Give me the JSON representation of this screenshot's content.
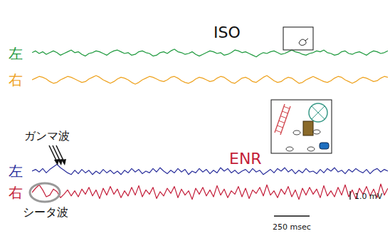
{
  "chart_data": [
    {
      "type": "line",
      "title": "ISO",
      "tick_labels": false,
      "x": [
        0,
        25,
        50,
        75,
        100,
        125,
        150,
        175,
        200,
        225,
        250,
        275,
        300,
        325,
        350,
        375,
        400,
        425,
        450,
        475,
        500,
        525,
        550,
        575,
        600,
        625,
        650,
        675,
        700,
        725,
        750,
        775,
        800,
        825,
        850,
        875,
        900,
        925,
        950,
        975,
        1000,
        1025,
        1050,
        1075,
        1100,
        1125,
        1150,
        1175,
        1200,
        1225,
        1250,
        1275,
        1300,
        1325,
        1350,
        1375,
        1400,
        1425,
        1450,
        1475,
        1500,
        1525,
        1550,
        1575,
        1600,
        1625,
        1650,
        1675,
        1700,
        1725,
        1750,
        1775,
        1800,
        1825,
        1850,
        1875,
        1900,
        1925,
        1950,
        1975,
        2000,
        2025,
        2050,
        2075,
        2100,
        2125,
        2150,
        2175,
        2200,
        2225,
        2250,
        2275,
        2300,
        2325,
        2350,
        2375,
        2400,
        2425,
        2450,
        2475,
        2500
      ],
      "xlim": [
        0,
        2500
      ],
      "ylim": [
        -1.2,
        1.2
      ],
      "series": [
        {
          "name": "左",
          "color": "#1f9a3e",
          "values": [
            0.1,
            0.3,
            0.0,
            0.2,
            -0.1,
            0.1,
            0.3,
            0.1,
            -0.2,
            0.0,
            0.2,
            0.4,
            0.1,
            0.2,
            -0.1,
            -0.3,
            0.0,
            0.1,
            0.3,
            0.2,
            0.0,
            -0.2,
            0.1,
            0.3,
            0.4,
            0.2,
            0.0,
            0.1,
            -0.2,
            -0.1,
            0.2,
            0.3,
            0.1,
            0.0,
            -0.3,
            -0.2,
            0.1,
            0.2,
            0.0,
            0.3,
            0.5,
            0.2,
            0.1,
            -0.1,
            0.0,
            0.2,
            -0.1,
            -0.3,
            -0.1,
            0.1,
            0.3,
            0.2,
            0.0,
            0.1,
            -0.2,
            -0.1,
            0.1,
            0.4,
            0.3,
            0.1,
            0.2,
            0.0,
            -0.2,
            -0.4,
            -0.1,
            0.1,
            0.0,
            0.2,
            0.3,
            0.1,
            -0.1,
            0.0,
            0.2,
            0.4,
            0.2,
            0.1,
            -0.1,
            -0.2,
            0.0,
            0.1,
            0.3,
            0.2,
            0.4,
            0.1,
            0.0,
            -0.2,
            -0.1,
            0.2,
            0.3,
            0.0,
            -0.1,
            0.1,
            0.2,
            0.0,
            -0.2,
            0.1,
            0.3,
            0.2,
            0.0,
            0.1,
            0.3
          ]
        },
        {
          "name": "右",
          "color": "#eea21e",
          "values": [
            0.0,
            0.2,
            0.4,
            0.3,
            0.1,
            -0.2,
            -0.4,
            -0.3,
            0.0,
            0.2,
            0.4,
            0.3,
            0.1,
            -0.1,
            -0.3,
            -0.2,
            0.1,
            0.3,
            0.5,
            0.3,
            0.0,
            -0.2,
            -0.4,
            -0.2,
            0.1,
            0.3,
            0.2,
            0.0,
            -0.3,
            -0.5,
            -0.3,
            0.0,
            0.2,
            0.4,
            0.3,
            0.1,
            -0.1,
            -0.2,
            0.0,
            0.3,
            0.4,
            0.2,
            -0.1,
            -0.3,
            -0.4,
            -0.2,
            0.1,
            0.3,
            0.2,
            0.0,
            -0.2,
            -0.1,
            0.2,
            0.4,
            0.3,
            0.0,
            -0.3,
            -0.4,
            -0.1,
            0.2,
            0.3,
            0.1,
            -0.2,
            -0.3,
            0.0,
            0.3,
            0.5,
            0.2,
            -0.1,
            -0.3,
            -0.2,
            0.1,
            0.3,
            0.2,
            -0.1,
            -0.4,
            -0.3,
            0.0,
            0.2,
            0.4,
            0.2,
            0.0,
            -0.2,
            -0.3,
            -0.1,
            0.2,
            0.4,
            0.3,
            0.0,
            -0.2,
            -0.4,
            -0.2,
            0.1,
            0.3,
            0.2,
            0.0,
            -0.2,
            -0.1,
            0.2,
            0.4,
            0.3
          ]
        }
      ]
    },
    {
      "type": "line",
      "title": "ENR",
      "tick_labels": false,
      "x": [
        0,
        25,
        50,
        75,
        100,
        125,
        150,
        175,
        200,
        225,
        250,
        275,
        300,
        325,
        350,
        375,
        400,
        425,
        450,
        475,
        500,
        525,
        550,
        575,
        600,
        625,
        650,
        675,
        700,
        725,
        750,
        775,
        800,
        825,
        850,
        875,
        900,
        925,
        950,
        975,
        1000,
        1025,
        1050,
        1075,
        1100,
        1125,
        1150,
        1175,
        1200,
        1225,
        1250,
        1275,
        1300,
        1325,
        1350,
        1375,
        1400,
        1425,
        1450,
        1475,
        1500,
        1525,
        1550,
        1575,
        1600,
        1625,
        1650,
        1675,
        1700,
        1725,
        1750,
        1775,
        1800,
        1825,
        1850,
        1875,
        1900,
        1925,
        1950,
        1975,
        2000,
        2025,
        2050,
        2075,
        2100,
        2125,
        2150,
        2175,
        2200,
        2225,
        2250,
        2275,
        2300,
        2325,
        2350,
        2375,
        2400,
        2425,
        2450,
        2475,
        2500
      ],
      "xlim": [
        0,
        2500
      ],
      "ylim": [
        -1.2,
        1.2
      ],
      "annotations": [
        "ガンマ波",
        "シータ波"
      ],
      "scale_bar": {
        "x": 250,
        "x_label": "250 msec",
        "y": 1.0,
        "y_label": "1.0 mV"
      },
      "series": [
        {
          "name": "左",
          "color": "#2a2f9c",
          "values": [
            0.0,
            0.2,
            -0.1,
            0.3,
            -0.2,
            0.2,
            0.5,
            0.8,
            0.4,
            0.1,
            -0.2,
            -0.4,
            0.1,
            -0.3,
            0.2,
            -0.2,
            0.1,
            -0.4,
            0.0,
            -0.3,
            0.2,
            -0.2,
            0.1,
            -0.3,
            0.0,
            -0.4,
            0.1,
            -0.2,
            0.3,
            -0.1,
            0.2,
            -0.3,
            0.0,
            -0.2,
            0.3,
            -0.1,
            0.4,
            0.0,
            -0.3,
            0.1,
            -0.2,
            0.3,
            -0.1,
            0.2,
            -0.4,
            0.0,
            -0.2,
            0.3,
            -0.1,
            0.2,
            -0.3,
            0.1,
            -0.2,
            0.4,
            0.0,
            0.3,
            -0.2,
            0.1,
            -0.3,
            0.0,
            0.2,
            -0.2,
            0.3,
            -0.1,
            0.1,
            -0.4,
            -0.1,
            0.2,
            -0.2,
            0.3,
            0.0,
            0.4,
            -0.1,
            0.2,
            -0.3,
            0.1,
            -0.2,
            0.3,
            -0.1,
            0.0,
            -0.3,
            0.2,
            -0.2,
            0.3,
            0.0,
            0.4,
            -0.1,
            0.1,
            -0.3,
            0.2,
            -0.1,
            0.3,
            0.0,
            -0.2,
            0.2,
            -0.3,
            0.1,
            0.3,
            -0.1,
            0.2,
            0.0
          ]
        },
        {
          "name": "右",
          "color": "#c41e3a",
          "values": [
            0.0,
            0.5,
            0.9,
            0.3,
            -0.5,
            -0.3,
            0.4,
            0.1,
            -0.6,
            -0.2,
            0.3,
            -0.4,
            0.2,
            -0.5,
            0.4,
            -0.2,
            0.6,
            -0.4,
            0.3,
            -0.7,
            0.5,
            -0.3,
            0.7,
            -0.2,
            0.4,
            -0.6,
            0.2,
            -0.4,
            0.6,
            -0.3,
            0.8,
            -0.5,
            0.3,
            -0.2,
            0.6,
            -0.7,
            0.1,
            -0.4,
            0.5,
            -0.1,
            0.7,
            -0.6,
            0.4,
            -0.3,
            0.2,
            -0.8,
            0.5,
            -0.2,
            0.6,
            -0.4,
            0.3,
            -0.5,
            0.8,
            -0.3,
            0.4,
            -0.6,
            0.2,
            -0.2,
            0.7,
            -0.5,
            0.5,
            -0.7,
            0.3,
            -0.1,
            0.6,
            -0.4,
            0.9,
            -0.3,
            0.2,
            -0.6,
            0.4,
            -0.2,
            0.7,
            -0.5,
            0.3,
            -0.8,
            0.5,
            -0.3,
            0.6,
            -0.2,
            0.4,
            -0.6,
            0.8,
            -0.4,
            0.2,
            -0.5,
            0.6,
            -0.3,
            0.9,
            -0.5,
            0.3,
            -0.7,
            0.5,
            -0.2,
            0.7,
            -0.4,
            0.4,
            -0.6,
            1.0,
            -0.3,
            0.5
          ]
        }
      ]
    }
  ]
}
